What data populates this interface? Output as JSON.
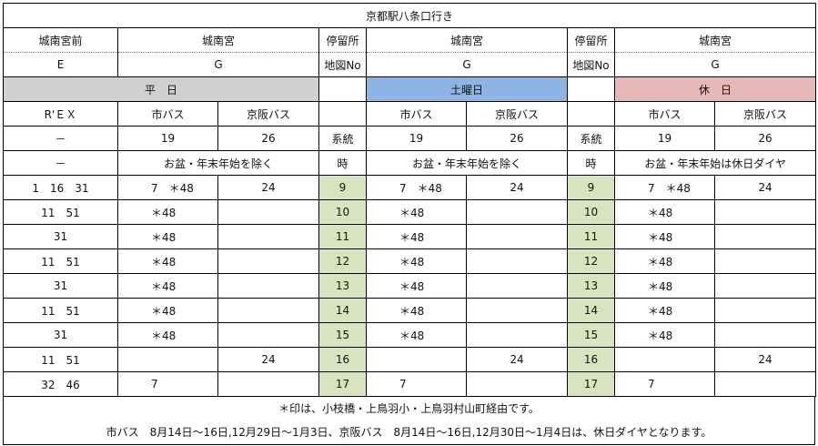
{
  "title": "京都駅八条口行き",
  "stops": {
    "col1": "城南宮前",
    "group1": "城南宮",
    "stop_label": "停留所",
    "group2": "城南宮",
    "stop_label2": "停留所",
    "group3": "城南宮"
  },
  "map": {
    "col1": "E",
    "group1": "G",
    "map_label": "地図No",
    "group2": "G",
    "map_label2": "地図No",
    "group3": "G"
  },
  "day_types": {
    "weekday": "平　日",
    "saturday": "土曜日",
    "holiday": "休　日"
  },
  "operators": {
    "rex": "R'ＥＸ",
    "city_bus": "市バス",
    "keihan_bus": "京阪バス"
  },
  "routes": {
    "rex": "－",
    "city": "19",
    "keihan": "26",
    "label": "系統"
  },
  "notes_row": {
    "rex": "－",
    "weekday": "お盆・年末年始を除く",
    "saturday": "お盆・年末年始を除く",
    "holiday": "お盆・年末年始は休日ダイヤ",
    "hour_label": "時"
  },
  "timetable": [
    {
      "rex": "1　16　31",
      "wd_city": "7　＊48",
      "wd_keihan": "24",
      "hour": "9",
      "sa_city": "7　＊48",
      "sa_keihan": "24",
      "ho_city": "7　＊48",
      "ho_keihan": "24"
    },
    {
      "rex": "11　51",
      "wd_city": "＊48",
      "wd_keihan": "",
      "hour": "10",
      "sa_city": "＊48",
      "sa_keihan": "",
      "ho_city": "＊48",
      "ho_keihan": ""
    },
    {
      "rex": "31",
      "wd_city": "＊48",
      "wd_keihan": "",
      "hour": "11",
      "sa_city": "＊48",
      "sa_keihan": "",
      "ho_city": "＊48",
      "ho_keihan": ""
    },
    {
      "rex": "11　51",
      "wd_city": "＊48",
      "wd_keihan": "",
      "hour": "12",
      "sa_city": "＊48",
      "sa_keihan": "",
      "ho_city": "＊48",
      "ho_keihan": ""
    },
    {
      "rex": "31",
      "wd_city": "＊48",
      "wd_keihan": "",
      "hour": "13",
      "sa_city": "＊48",
      "sa_keihan": "",
      "ho_city": "＊48",
      "ho_keihan": ""
    },
    {
      "rex": "11　51",
      "wd_city": "＊48",
      "wd_keihan": "",
      "hour": "14",
      "sa_city": "＊48",
      "sa_keihan": "",
      "ho_city": "＊48",
      "ho_keihan": ""
    },
    {
      "rex": "31",
      "wd_city": "＊48",
      "wd_keihan": "",
      "hour": "15",
      "sa_city": "＊48",
      "sa_keihan": "",
      "ho_city": "＊48",
      "ho_keihan": ""
    },
    {
      "rex": "11　51",
      "wd_city": "",
      "wd_keihan": "24",
      "hour": "16",
      "sa_city": "",
      "sa_keihan": "24",
      "ho_city": "",
      "ho_keihan": "24"
    },
    {
      "rex": "32　46",
      "wd_city": "7",
      "wd_keihan": "",
      "hour": "17",
      "sa_city": "7",
      "sa_keihan": "",
      "ho_city": "7",
      "ho_keihan": ""
    }
  ],
  "footer": {
    "line1": "＊印は、小枝橋・上鳥羽小・上鳥羽村山町経由です。",
    "line2": "市バス　8月14日～16日,12月29日～1月3日、京阪バス　8月14日～16日,12月30日～1月4日は、休日ダイヤとなります。"
  },
  "colors": {
    "weekday_header": "#d0d0d0",
    "saturday_header": "#8eb4e3",
    "holiday_header": "#e6b9b8",
    "hour_column": "#d7e4bd"
  }
}
